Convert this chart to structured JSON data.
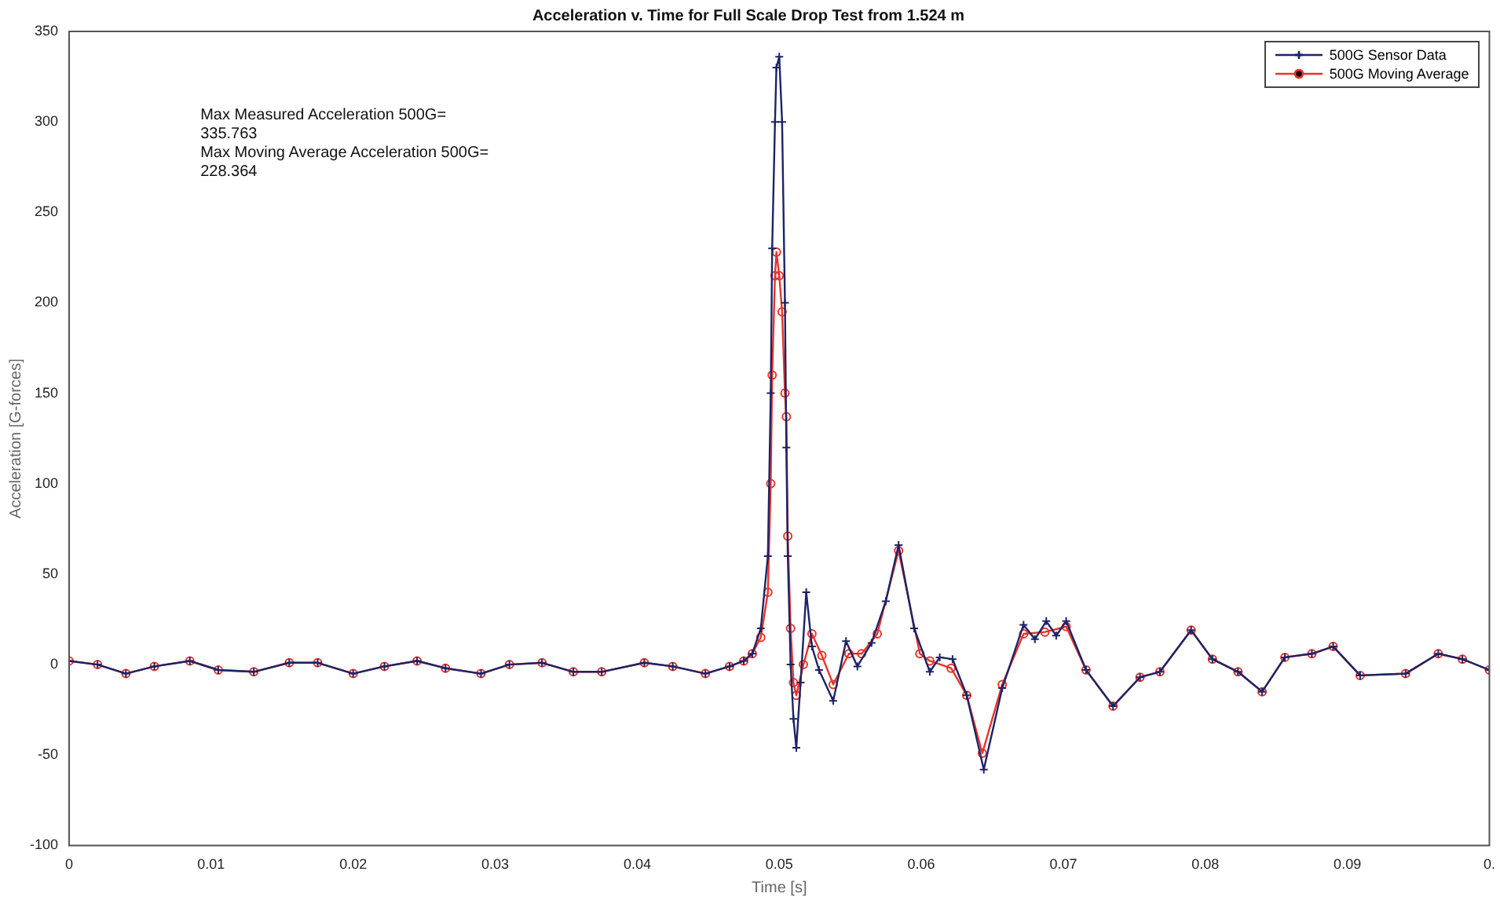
{
  "chart_data": {
    "type": "line",
    "title": "Acceleration v. Time for Full Scale Drop Test from 1.524 m",
    "xlabel": "Time [s]",
    "ylabel": "Acceleration [G-forces]",
    "annotations": [
      "Max Measured Acceleration 500G=\n335.763",
      "Max Moving Average Acceleration 500G=\n228.364"
    ],
    "xlim": [
      0,
      0.1
    ],
    "xticks": [
      0,
      0.01,
      0.02,
      0.03,
      0.04,
      0.05,
      0.06,
      0.07,
      0.08,
      0.09,
      {
        "value": 0.1,
        "label": "0."
      }
    ],
    "ylim": [
      -100,
      350
    ],
    "yticks": [
      -100,
      -50,
      0,
      50,
      100,
      150,
      200,
      250,
      300,
      350
    ],
    "grid": false,
    "legend": "top right",
    "series": [
      {
        "name": "500G Sensor Data",
        "color": "#1c2466",
        "marker": "cross",
        "x": [
          0,
          0.002,
          0.004,
          0.006,
          0.0085,
          0.0105,
          0.013,
          0.0155,
          0.0175,
          0.02,
          0.0222,
          0.0245,
          0.0265,
          0.029,
          0.031,
          0.0333,
          0.0355,
          0.0375,
          0.0405,
          0.0425,
          0.0448,
          0.0465,
          0.0475,
          0.0481,
          0.0487,
          0.0492,
          0.0494,
          0.0495,
          0.0497,
          0.0498,
          0.05,
          0.0502,
          0.0504,
          0.0505,
          0.0506,
          0.0508,
          0.051,
          0.0512,
          0.0515,
          0.0519,
          0.0523,
          0.0528,
          0.0538,
          0.0547,
          0.0555,
          0.0565,
          0.0575,
          0.0584,
          0.0595,
          0.0606,
          0.0613,
          0.0622,
          0.0632,
          0.0644,
          0.0657,
          0.0672,
          0.068,
          0.0688,
          0.0695,
          0.0702,
          0.0716,
          0.0735,
          0.0754,
          0.0768,
          0.079,
          0.0805,
          0.0823,
          0.084,
          0.0856,
          0.0875,
          0.089,
          0.0909,
          0.0941,
          0.0964,
          0.0981,
          0.1
        ],
        "values": [
          2,
          0,
          -5,
          -1,
          2,
          -3,
          -4,
          1,
          1,
          -5,
          -1,
          2,
          -2,
          -5,
          0,
          1,
          -4,
          -4,
          1,
          -1,
          -5,
          -1,
          2,
          6,
          20,
          60,
          150,
          230,
          300,
          330,
          336,
          300,
          200,
          120,
          60,
          0,
          -30,
          -46,
          -10,
          40,
          10,
          -3,
          -20,
          13,
          -1,
          12,
          35,
          66,
          20,
          -4,
          4,
          3,
          -17,
          -58,
          -13,
          22,
          14,
          24,
          16,
          24,
          -3,
          -23,
          -7,
          -4,
          19,
          3,
          -4,
          -15,
          4,
          6,
          10,
          -6,
          -5,
          6,
          3,
          -3
        ]
      },
      {
        "name": "500G Moving Average",
        "color": "#e8332a",
        "marker": "circle",
        "x": [
          0,
          0.002,
          0.004,
          0.006,
          0.0085,
          0.0105,
          0.013,
          0.0155,
          0.0175,
          0.02,
          0.0222,
          0.0245,
          0.0265,
          0.029,
          0.031,
          0.0333,
          0.0355,
          0.0375,
          0.0405,
          0.0425,
          0.0448,
          0.0465,
          0.0475,
          0.0481,
          0.0487,
          0.0492,
          0.0494,
          0.0495,
          0.0497,
          0.0498,
          0.05,
          0.0502,
          0.0504,
          0.0505,
          0.0506,
          0.0508,
          0.051,
          0.0512,
          0.0517,
          0.0523,
          0.053,
          0.0538,
          0.0549,
          0.0558,
          0.0569,
          0.0584,
          0.0599,
          0.0606,
          0.0621,
          0.0632,
          0.0643,
          0.0657,
          0.0672,
          0.0687,
          0.0702,
          0.0716,
          0.0735,
          0.0754,
          0.0768,
          0.079,
          0.0805,
          0.0823,
          0.084,
          0.0856,
          0.0875,
          0.089,
          0.0909,
          0.0941,
          0.0964,
          0.0981,
          0.1
        ],
        "values": [
          2,
          0,
          -5,
          -1,
          2,
          -3,
          -4,
          1,
          1,
          -5,
          -1,
          2,
          -2,
          -5,
          0,
          1,
          -4,
          -4,
          1,
          -1,
          -5,
          -1,
          2,
          6,
          15,
          40,
          100,
          160,
          215,
          228,
          215,
          195,
          150,
          137,
          71,
          20,
          -10,
          -17,
          0,
          17,
          5,
          -11,
          6,
          6,
          17,
          63,
          6,
          2,
          -2,
          -17,
          -49,
          -11,
          17,
          18,
          21,
          -3,
          -23,
          -7,
          -4,
          19,
          3,
          -4,
          -15,
          4,
          6,
          10,
          -6,
          -5,
          6,
          3,
          -3
        ]
      }
    ]
  }
}
